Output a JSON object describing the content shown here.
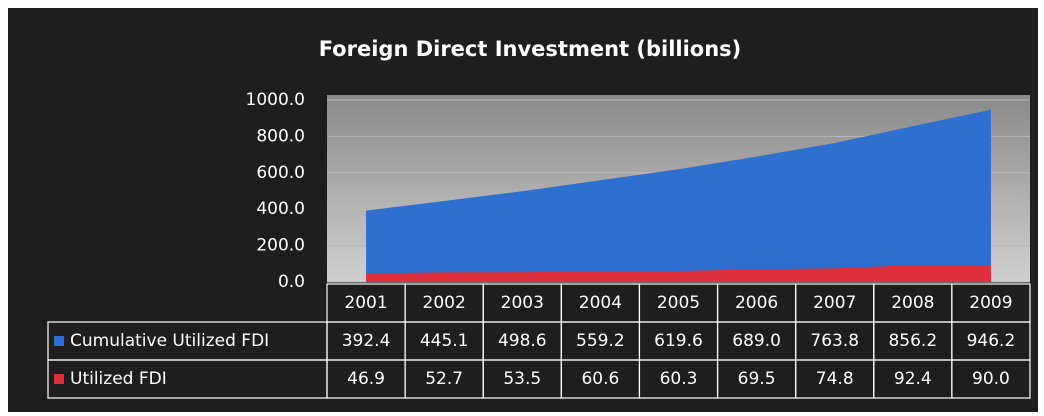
{
  "chart_data": {
    "type": "area",
    "title": "Foreign Direct Investment (billions)",
    "categories": [
      "2001",
      "2002",
      "2003",
      "2004",
      "2005",
      "2006",
      "2007",
      "2008",
      "2009"
    ],
    "series": [
      {
        "name": "Cumulative Utilized FDI",
        "color": "#2f6fd0",
        "values": [
          392.4,
          445.1,
          498.6,
          559.2,
          619.6,
          689.0,
          763.8,
          856.2,
          946.2
        ],
        "value_labels": [
          "392.4",
          "445.1",
          "498.6",
          "559.2",
          "619.6",
          "689.0",
          "763.8",
          "856.2",
          "946.2"
        ]
      },
      {
        "name": "Utilized FDI",
        "color": "#e0303c",
        "values": [
          46.9,
          52.7,
          53.5,
          60.6,
          60.3,
          69.5,
          74.8,
          92.4,
          90.0
        ],
        "value_labels": [
          "46.9",
          "52.7",
          "53.5",
          "60.6",
          "60.3",
          "69.5",
          "74.8",
          "92.4",
          "90.0"
        ]
      }
    ],
    "ylim": [
      0,
      1000
    ],
    "yticks": [
      {
        "value": 0,
        "label": "0.0"
      },
      {
        "value": 200,
        "label": "200.0"
      },
      {
        "value": 400,
        "label": "400.0"
      },
      {
        "value": 600,
        "label": "600.0"
      },
      {
        "value": 800,
        "label": "800.0"
      },
      {
        "value": 1000,
        "label": "1000.0"
      }
    ],
    "grid": true
  }
}
